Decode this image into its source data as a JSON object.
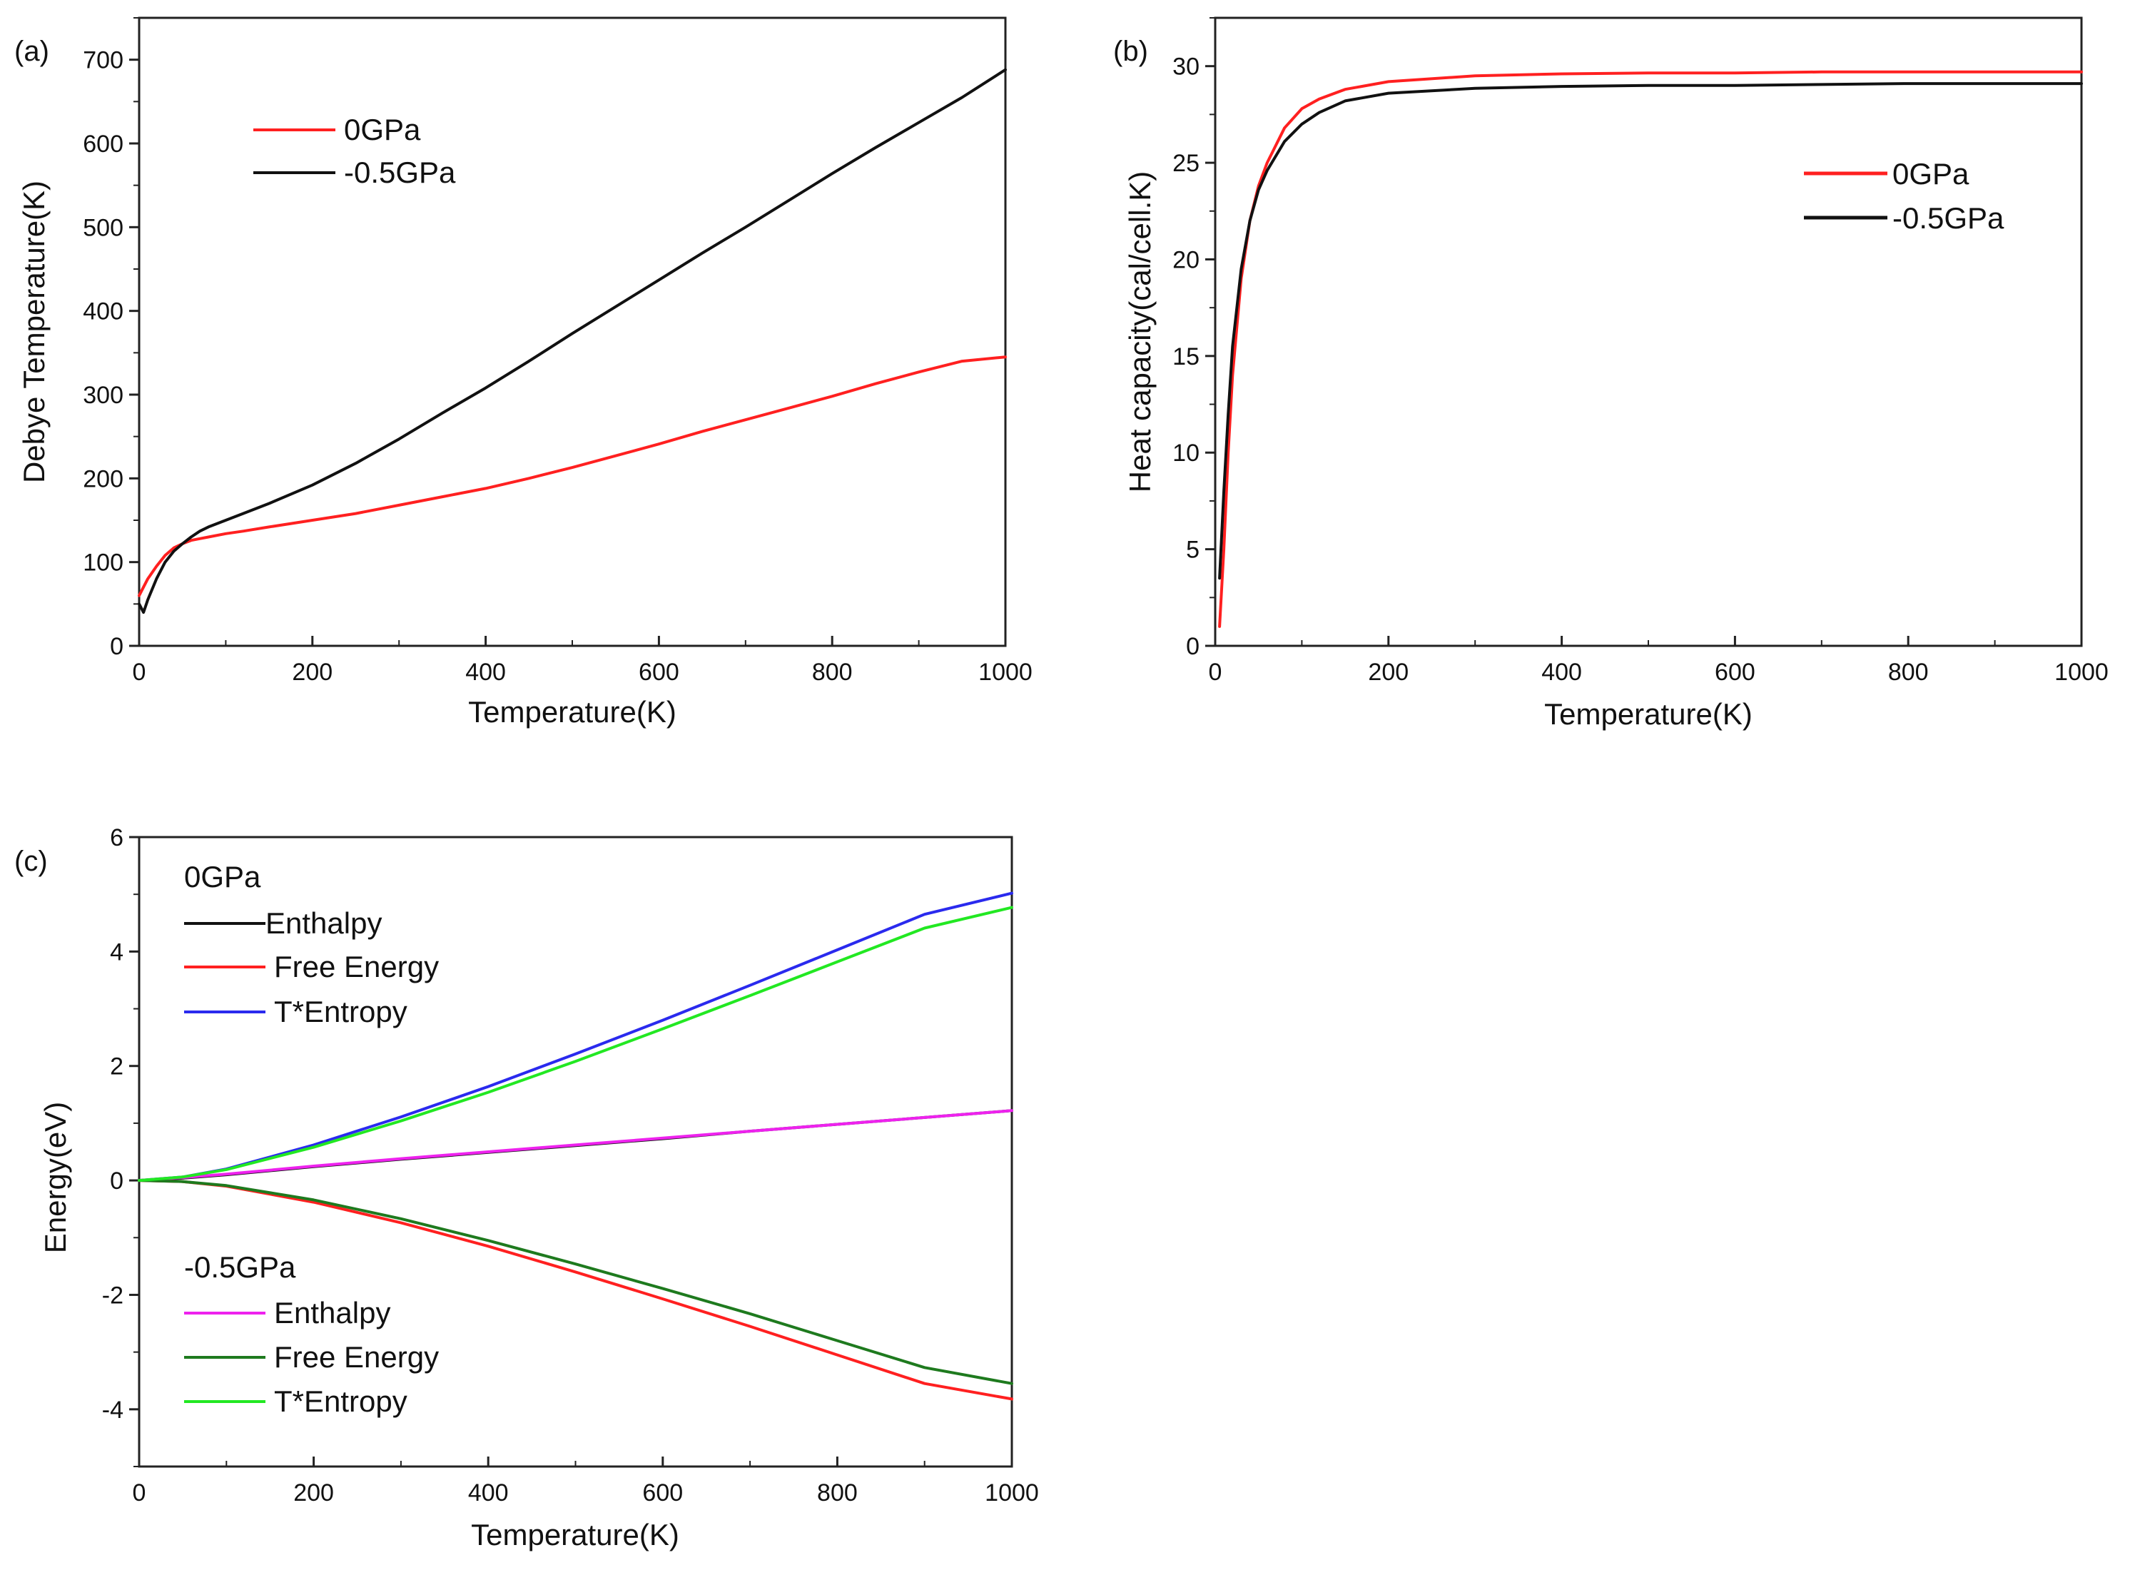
{
  "figure": {
    "panels": [
      {
        "label": "(a)",
        "chart_data": {
          "type": "line",
          "title": "",
          "xlabel": "Temperature(K)",
          "ylabel": "Debye Temperature(K)",
          "xlim": [
            0,
            1000
          ],
          "ylim": [
            0,
            750
          ],
          "xticks": [
            0,
            200,
            400,
            600,
            800,
            1000
          ],
          "yticks": [
            0,
            100,
            200,
            300,
            400,
            500,
            600,
            700
          ],
          "legend_position": "top-left",
          "series": [
            {
              "name": "0GPa",
              "color": "#ff2020",
              "x": [
                0,
                10,
                20,
                30,
                40,
                50,
                60,
                70,
                80,
                100,
                120,
                150,
                200,
                250,
                300,
                350,
                400,
                450,
                500,
                550,
                600,
                650,
                700,
                750,
                800,
                850,
                900,
                950,
                1000
              ],
              "y": [
                60,
                80,
                95,
                108,
                117,
                122,
                126,
                128,
                130,
                134,
                137,
                142,
                150,
                158,
                168,
                178,
                188,
                200,
                213,
                227,
                241,
                256,
                270,
                284,
                298,
                313,
                327,
                340,
                345
              ]
            },
            {
              "name": "-0.5GPa",
              "color": "#111111",
              "x": [
                0,
                5,
                10,
                20,
                30,
                40,
                50,
                60,
                70,
                80,
                100,
                120,
                150,
                200,
                250,
                300,
                350,
                400,
                450,
                500,
                550,
                600,
                650,
                700,
                750,
                800,
                850,
                900,
                950,
                1000
              ],
              "y": [
                50,
                40,
                55,
                80,
                100,
                113,
                122,
                130,
                137,
                142,
                150,
                158,
                170,
                192,
                218,
                247,
                278,
                308,
                340,
                373,
                405,
                437,
                469,
                500,
                532,
                564,
                595,
                625,
                655,
                688
              ]
            }
          ]
        }
      },
      {
        "label": "(b)",
        "chart_data": {
          "type": "line",
          "title": "",
          "xlabel": "Temperature(K)",
          "ylabel": "Heat capacity(cal/cell.K)",
          "xlim": [
            0,
            1000
          ],
          "ylim": [
            0,
            32.5
          ],
          "xticks": [
            0,
            200,
            400,
            600,
            800,
            1000
          ],
          "yticks": [
            0,
            5,
            10,
            15,
            20,
            25,
            30
          ],
          "legend_position": "right",
          "series": [
            {
              "name": "0GPa",
              "color": "#ff2020",
              "x": [
                5,
                10,
                15,
                20,
                30,
                40,
                50,
                60,
                80,
                100,
                120,
                150,
                200,
                300,
                400,
                500,
                600,
                700,
                800,
                900,
                1000
              ],
              "y": [
                1,
                5,
                10,
                14,
                19,
                22,
                23.8,
                25,
                26.8,
                27.8,
                28.3,
                28.8,
                29.2,
                29.5,
                29.6,
                29.65,
                29.65,
                29.7,
                29.7,
                29.7,
                29.7
              ]
            },
            {
              "name": "-0.5GPa",
              "color": "#111111",
              "x": [
                5,
                10,
                15,
                20,
                30,
                40,
                50,
                60,
                80,
                100,
                120,
                150,
                200,
                300,
                400,
                500,
                600,
                700,
                800,
                900,
                1000
              ],
              "y": [
                3.5,
                8,
                12,
                15.5,
                19.5,
                22,
                23.6,
                24.6,
                26.1,
                27,
                27.6,
                28.2,
                28.6,
                28.85,
                28.95,
                29,
                29,
                29.05,
                29.1,
                29.1,
                29.1
              ]
            }
          ]
        }
      },
      {
        "label": "(c)",
        "chart_data": {
          "type": "line",
          "title": "",
          "xlabel": "Temperature(K)",
          "ylabel": "Energy(eV)",
          "xlim": [
            0,
            1000
          ],
          "ylim": [
            -5,
            6
          ],
          "xticks": [
            0,
            200,
            400,
            600,
            800,
            1000
          ],
          "yticks": [
            -4,
            -2,
            0,
            2,
            4,
            6
          ],
          "legend_groups": [
            {
              "title": "0GPa",
              "entries": [
                {
                  "name": "Enthalpy",
                  "color": "#111111"
                },
                {
                  "name": "Free Energy",
                  "color": "#ff2020"
                },
                {
                  "name": "T*Entropy",
                  "color": "#2a2aee"
                }
              ]
            },
            {
              "title": "-0.5GPa",
              "entries": [
                {
                  "name": "Enthalpy",
                  "color": "#ee22ee"
                },
                {
                  "name": "Free Energy",
                  "color": "#1e7a1e"
                },
                {
                  "name": "T*Entropy",
                  "color": "#22e822"
                }
              ]
            }
          ],
          "series": [
            {
              "group": "0GPa",
              "name": "Enthalpy",
              "color": "#111111",
              "x": [
                0,
                50,
                100,
                200,
                300,
                400,
                500,
                600,
                700,
                800,
                900,
                1000
              ],
              "y": [
                0,
                0.04,
                0.1,
                0.24,
                0.37,
                0.49,
                0.61,
                0.73,
                0.86,
                0.98,
                1.1,
                1.22
              ]
            },
            {
              "group": "0GPa",
              "name": "Free Energy",
              "color": "#ff2020",
              "x": [
                0,
                50,
                100,
                200,
                300,
                400,
                500,
                600,
                700,
                800,
                900,
                1000
              ],
              "y": [
                0,
                -0.02,
                -0.1,
                -0.38,
                -0.74,
                -1.15,
                -1.6,
                -2.07,
                -2.55,
                -3.05,
                -3.55,
                -3.82
              ]
            },
            {
              "group": "0GPa",
              "name": "T*Entropy",
              "color": "#2a2aee",
              "x": [
                0,
                50,
                100,
                200,
                300,
                400,
                500,
                600,
                700,
                800,
                900,
                1000
              ],
              "y": [
                0,
                0.06,
                0.2,
                0.62,
                1.11,
                1.64,
                2.21,
                2.8,
                3.41,
                4.03,
                4.65,
                5.02
              ]
            },
            {
              "group": "-0.5GPa",
              "name": "Enthalpy",
              "color": "#ee22ee",
              "x": [
                0,
                50,
                100,
                200,
                300,
                400,
                500,
                600,
                700,
                800,
                900,
                1000
              ],
              "y": [
                0,
                0.05,
                0.11,
                0.25,
                0.38,
                0.5,
                0.62,
                0.74,
                0.86,
                0.98,
                1.1,
                1.22
              ]
            },
            {
              "group": "-0.5GPa",
              "name": "Free Energy",
              "color": "#1e7a1e",
              "x": [
                0,
                50,
                100,
                200,
                300,
                400,
                500,
                600,
                700,
                800,
                900,
                1000
              ],
              "y": [
                0,
                -0.02,
                -0.09,
                -0.34,
                -0.67,
                -1.05,
                -1.46,
                -1.89,
                -2.33,
                -2.8,
                -3.27,
                -3.55
              ]
            },
            {
              "group": "-0.5GPa",
              "name": "T*Entropy",
              "color": "#22e822",
              "x": [
                0,
                50,
                100,
                200,
                300,
                400,
                500,
                600,
                700,
                800,
                900,
                1000
              ],
              "y": [
                0,
                0.06,
                0.19,
                0.58,
                1.04,
                1.54,
                2.08,
                2.65,
                3.23,
                3.82,
                4.41,
                4.77
              ]
            }
          ]
        }
      }
    ]
  }
}
